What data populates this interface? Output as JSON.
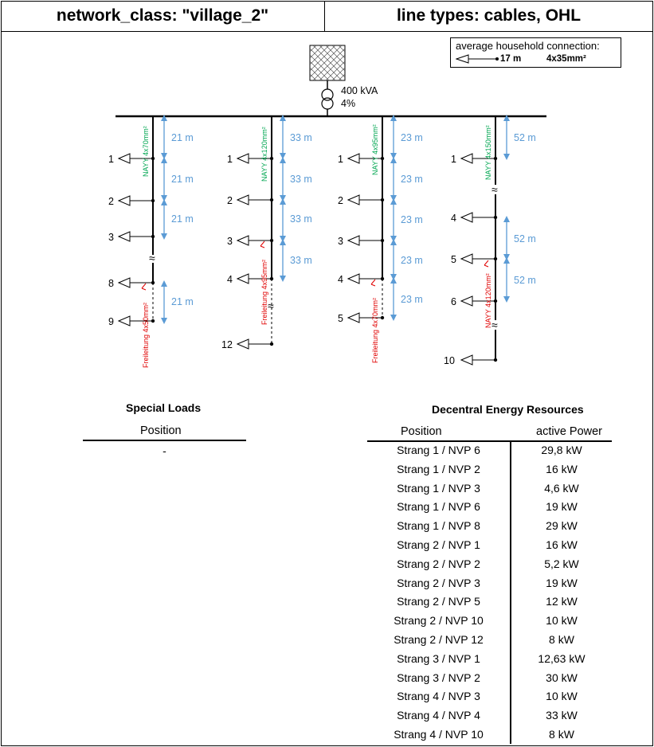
{
  "header": {
    "left": "network_class: \"village_2\"",
    "right": "line types: cables, OHL"
  },
  "legend": {
    "title": "average household connection:",
    "length": "17 m",
    "cable_type": "4x35mm²"
  },
  "transformer": {
    "rating": "400 kVA",
    "impedance": "4%"
  },
  "strands": [
    {
      "nodes": [
        "1",
        "2",
        "3",
        "8",
        "9"
      ],
      "segment_lengths": [
        "21 m",
        "21 m",
        "21 m",
        "21 m"
      ],
      "cable_label": "NAYY 4x70mm²",
      "ohl_label": "Freileitung 4x50mm²"
    },
    {
      "nodes": [
        "1",
        "2",
        "3",
        "4",
        "12"
      ],
      "segment_lengths": [
        "33 m",
        "33 m",
        "33 m",
        "33 m"
      ],
      "cable_label": "NAYY 4x120mm²",
      "ohl_label": "Freileitung 4x95mm²"
    },
    {
      "nodes": [
        "1",
        "2",
        "3",
        "4",
        "5"
      ],
      "segment_lengths": [
        "23 m",
        "23 m",
        "23 m",
        "23 m",
        "23 m"
      ],
      "cable_label": "NAYY 4x95mm²",
      "ohl_label": "Freileitung 4x70mm²"
    },
    {
      "nodes": [
        "1",
        "4",
        "5",
        "6",
        "10"
      ],
      "segment_lengths": [
        "52 m",
        "52 m",
        "52 m"
      ],
      "cable_label": "NAYY 4x150mm²",
      "cable_label_2": "NAYY 4x120mm²"
    }
  ],
  "special_loads": {
    "title": "Special Loads",
    "col_position": "Position",
    "rows": [
      "-"
    ]
  },
  "der": {
    "title": "Decentral Energy Resources",
    "col_position": "Position",
    "col_power": "active Power",
    "rows": [
      {
        "position": "Strang 1 / NVP 6",
        "power": "29,8 kW"
      },
      {
        "position": "Strang 1 / NVP 2",
        "power": "16 kW"
      },
      {
        "position": "Strang 1 / NVP 3",
        "power": "4,6 kW"
      },
      {
        "position": "Strang 1 / NVP 6",
        "power": "19 kW"
      },
      {
        "position": "Strang 1 / NVP 8",
        "power": "29 kW"
      },
      {
        "position": "Strang 2 / NVP 1",
        "power": "16 kW"
      },
      {
        "position": "Strang 2 / NVP 2",
        "power": "5,2 kW"
      },
      {
        "position": "Strang 2 / NVP 3",
        "power": "19 kW"
      },
      {
        "position": "Strang 2 / NVP 5",
        "power": "12 kW"
      },
      {
        "position": "Strang 2 / NVP 10",
        "power": "10 kW"
      },
      {
        "position": "Strang 2 / NVP 12",
        "power": "8 kW"
      },
      {
        "position": "Strang 3 / NVP 1",
        "power": "12,63 kW"
      },
      {
        "position": "Strang 3 / NVP 2",
        "power": "30 kW"
      },
      {
        "position": "Strang 4 / NVP 3",
        "power": "10 kW"
      },
      {
        "position": "Strang 4 / NVP 4",
        "power": "33 kW"
      },
      {
        "position": "Strang 4 / NVP 10",
        "power": "8 kW"
      }
    ]
  }
}
